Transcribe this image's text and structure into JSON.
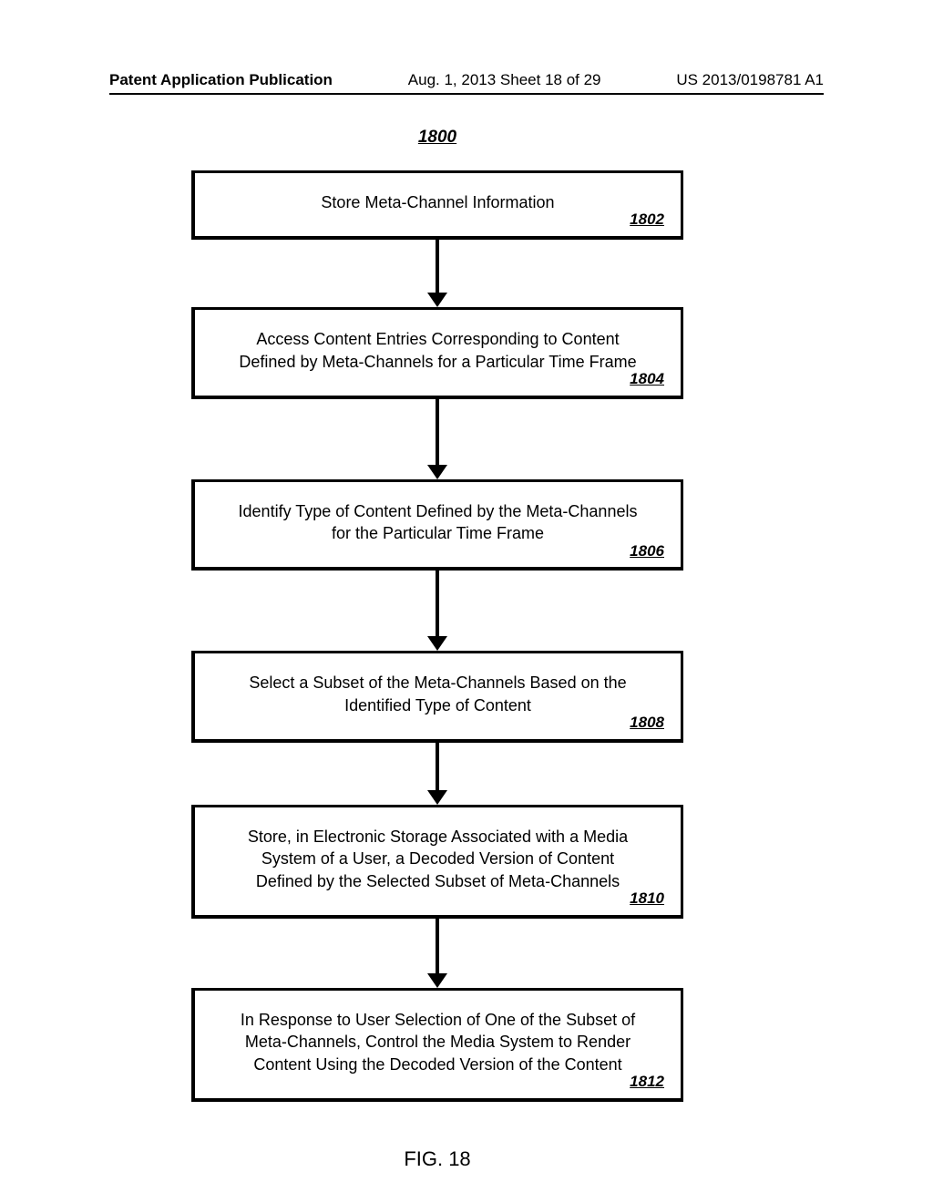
{
  "header": {
    "left": "Patent Application Publication",
    "center": "Aug. 1, 2013  Sheet 18 of 29",
    "right": "US 2013/0198781 A1"
  },
  "figure": {
    "number": "1800",
    "caption": "FIG. 18",
    "steps": [
      {
        "text": "Store Meta-Channel Information",
        "ref": "1802",
        "arrow_height": 58
      },
      {
        "text": "Access Content Entries Corresponding to Content Defined by Meta-Channels for a Particular Time Frame",
        "ref": "1804",
        "arrow_height": 72
      },
      {
        "text": "Identify Type of Content Defined by the Meta-Channels for the Particular Time Frame",
        "ref": "1806",
        "arrow_height": 72
      },
      {
        "text": "Select a Subset of the Meta-Channels Based on the Identified Type of Content",
        "ref": "1808",
        "arrow_height": 52
      },
      {
        "text": "Store, in Electronic Storage Associated with a Media System of a User, a Decoded Version of Content Defined by the Selected Subset of Meta-Channels",
        "ref": "1810",
        "arrow_height": 60
      },
      {
        "text": "In Response to User Selection of One of the Subset of Meta-Channels, Control the Media System to Render Content Using the Decoded Version of the Content",
        "ref": "1812",
        "arrow_height": 0
      }
    ]
  },
  "style": {
    "box_border_color": "#000000",
    "arrow_color": "#000000",
    "background_color": "#ffffff",
    "font_family": "Arial",
    "step_fontsize": 18,
    "ref_fontsize": 17,
    "fignum_fontsize": 19,
    "caption_fontsize": 22
  }
}
